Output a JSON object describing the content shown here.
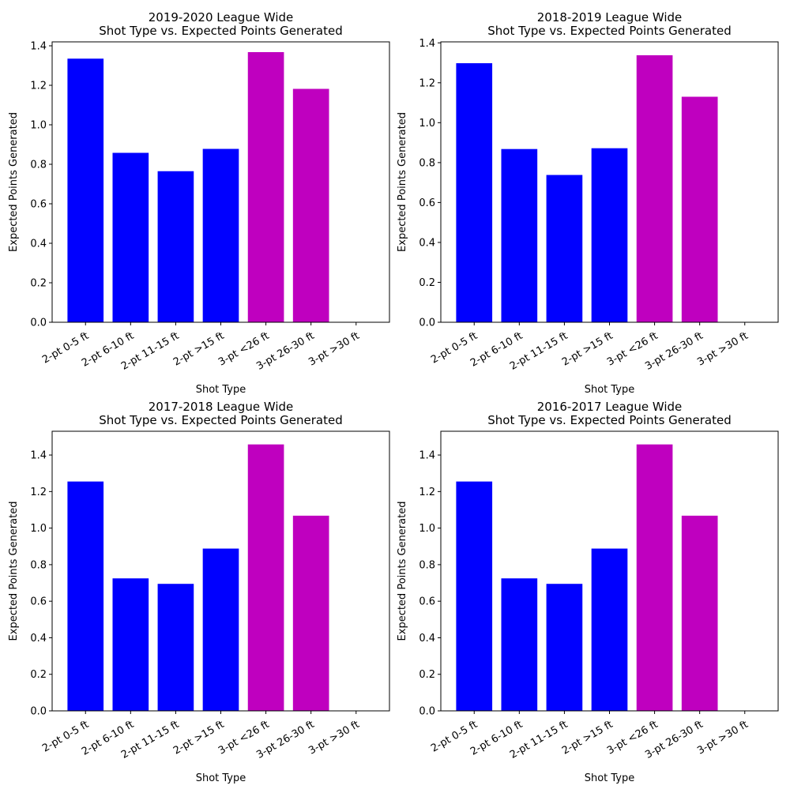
{
  "chart_data": [
    {
      "type": "bar",
      "title": [
        "2019-2020 League Wide",
        "Shot Type vs. Expected Points Generated"
      ],
      "xlabel": "Shot Type",
      "ylabel": "Expected Points Generated",
      "categories": [
        "2-pt 0-5 ft",
        "2-pt 6-10 ft",
        "2-pt 11-15 ft",
        "2-pt >15 ft",
        "3-pt <26 ft",
        "3-pt 26-30 ft",
        "3-pt >30 ft"
      ],
      "values": [
        1.335,
        0.858,
        0.765,
        0.878,
        1.368,
        1.182,
        0.0
      ],
      "colors": [
        "#0000ff",
        "#0000ff",
        "#0000ff",
        "#0000ff",
        "#bf00bf",
        "#bf00bf",
        "#bf00bf"
      ],
      "ylim": [
        0,
        1.42
      ],
      "yticks": [
        0.0,
        0.2,
        0.4,
        0.6,
        0.8,
        1.0,
        1.2,
        1.4
      ],
      "ytick_labels": [
        "0.0",
        "0.2",
        "0.4",
        "0.6",
        "0.8",
        "1.0",
        "1.2",
        "1.4"
      ],
      "grid": false
    },
    {
      "type": "bar",
      "title": [
        "2018-2019 League Wide",
        "Shot Type vs. Expected Points Generated"
      ],
      "xlabel": "Shot Type",
      "ylabel": "Expected Points Generated",
      "categories": [
        "2-pt 0-5 ft",
        "2-pt 6-10 ft",
        "2-pt 11-15 ft",
        "2-pt >15 ft",
        "3-pt <26 ft",
        "3-pt 26-30 ft",
        "3-pt >30 ft"
      ],
      "values": [
        1.298,
        0.868,
        0.738,
        0.872,
        1.338,
        1.13,
        0.0
      ],
      "colors": [
        "#0000ff",
        "#0000ff",
        "#0000ff",
        "#0000ff",
        "#bf00bf",
        "#bf00bf",
        "#bf00bf"
      ],
      "ylim": [
        0,
        1.405
      ],
      "yticks": [
        0.0,
        0.2,
        0.4,
        0.6,
        0.8,
        1.0,
        1.2,
        1.4
      ],
      "ytick_labels": [
        "0.0",
        "0.2",
        "0.4",
        "0.6",
        "0.8",
        "1.0",
        "1.2",
        "1.4"
      ],
      "grid": false
    },
    {
      "type": "bar",
      "title": [
        "2017-2018 League Wide",
        "Shot Type vs. Expected Points Generated"
      ],
      "xlabel": "Shot Type",
      "ylabel": "Expected Points Generated",
      "categories": [
        "2-pt 0-5 ft",
        "2-pt 6-10 ft",
        "2-pt 11-15 ft",
        "2-pt >15 ft",
        "3-pt <26 ft",
        "3-pt 26-30 ft",
        "3-pt >30 ft"
      ],
      "values": [
        1.255,
        0.725,
        0.695,
        0.888,
        1.458,
        1.068,
        0.0
      ],
      "colors": [
        "#0000ff",
        "#0000ff",
        "#0000ff",
        "#0000ff",
        "#bf00bf",
        "#bf00bf",
        "#bf00bf"
      ],
      "ylim": [
        0,
        1.53
      ],
      "yticks": [
        0.0,
        0.2,
        0.4,
        0.6,
        0.8,
        1.0,
        1.2,
        1.4
      ],
      "ytick_labels": [
        "0.0",
        "0.2",
        "0.4",
        "0.6",
        "0.8",
        "1.0",
        "1.2",
        "1.4"
      ],
      "grid": false
    },
    {
      "type": "bar",
      "title": [
        "2016-2017 League Wide",
        "Shot Type vs. Expected Points Generated"
      ],
      "xlabel": "Shot Type",
      "ylabel": "Expected Points Generated",
      "categories": [
        "2-pt 0-5 ft",
        "2-pt 6-10 ft",
        "2-pt 11-15 ft",
        "2-pt >15 ft",
        "3-pt <26 ft",
        "3-pt 26-30 ft",
        "3-pt >30 ft"
      ],
      "values": [
        1.255,
        0.725,
        0.695,
        0.888,
        1.458,
        1.068,
        0.0
      ],
      "colors": [
        "#0000ff",
        "#0000ff",
        "#0000ff",
        "#0000ff",
        "#bf00bf",
        "#bf00bf",
        "#bf00bf"
      ],
      "ylim": [
        0,
        1.53
      ],
      "yticks": [
        0.0,
        0.2,
        0.4,
        0.6,
        0.8,
        1.0,
        1.2,
        1.4
      ],
      "ytick_labels": [
        "0.0",
        "0.2",
        "0.4",
        "0.6",
        "0.8",
        "1.0",
        "1.2",
        "1.4"
      ],
      "grid": false
    }
  ]
}
